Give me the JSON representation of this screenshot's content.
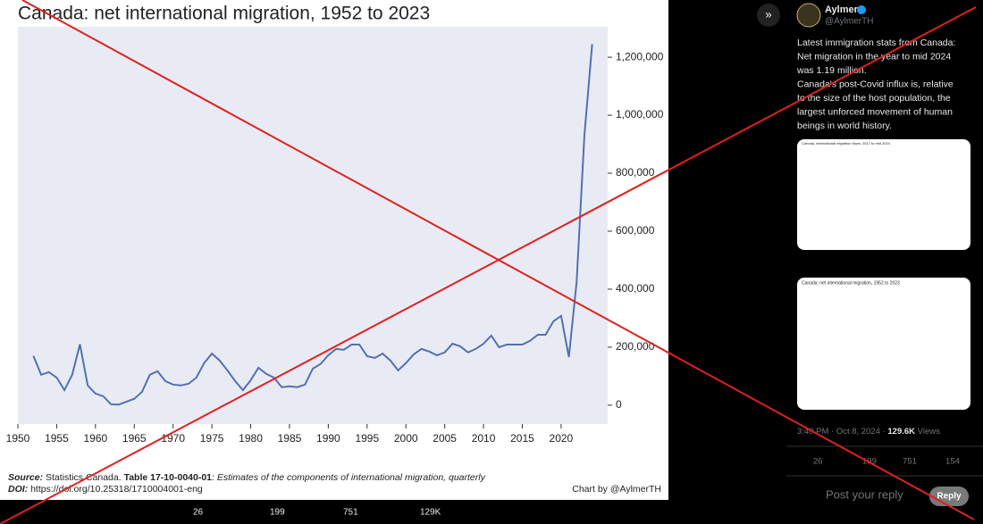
{
  "chart_data": {
    "type": "line",
    "title": "Canada: net international migration, 1952 to 2023",
    "source": [
      "Source:",
      " Statistics Canada. ",
      "Table 17-10-0040-01",
      ": ",
      "Estimates of the components of international migration, quarterly"
    ],
    "doi": [
      "DOI:",
      " https://doi.org/10.25318/1710004001-eng"
    ],
    "credit": "Chart by @AylmerTH",
    "x": [
      1952,
      1953,
      1954,
      1955,
      1956,
      1957,
      1958,
      1959,
      1960,
      1961,
      1962,
      1963,
      1964,
      1965,
      1966,
      1967,
      1968,
      1969,
      1970,
      1971,
      1972,
      1973,
      1974,
      1975,
      1976,
      1977,
      1978,
      1979,
      1980,
      1981,
      1982,
      1983,
      1984,
      1985,
      1986,
      1987,
      1988,
      1989,
      1990,
      1991,
      1992,
      1993,
      1994,
      1995,
      1996,
      1997,
      1998,
      1999,
      2000,
      2001,
      2002,
      2003,
      2004,
      2005,
      2006,
      2007,
      2008,
      2009,
      2010,
      2011,
      2012,
      2013,
      2014,
      2015,
      2016,
      2017,
      2018,
      2019,
      2020,
      2021,
      2022,
      2023,
      2024
    ],
    "series": [
      {
        "color": "#5470b0",
        "values": [
          170000,
          105000,
          114000,
          95000,
          52000,
          105000,
          210000,
          68000,
          40000,
          31000,
          3000,
          2000,
          12000,
          22000,
          46000,
          105000,
          117000,
          83000,
          71000,
          68000,
          74000,
          95000,
          145000,
          178000,
          154000,
          120000,
          83000,
          52000,
          86000,
          129000,
          108000,
          95000,
          62000,
          65000,
          62000,
          71000,
          126000,
          142000,
          172000,
          194000,
          191000,
          209000,
          209000,
          169000,
          163000,
          178000,
          154000,
          120000,
          145000,
          175000,
          194000,
          185000,
          172000,
          182000,
          212000,
          203000,
          182000,
          194000,
          212000,
          240000,
          200000,
          209000,
          209000,
          209000,
          222000,
          243000,
          243000,
          289000,
          308000,
          166000,
          425000,
          930000,
          1245000
        ]
      }
    ],
    "xlim": [
      1950,
      2026
    ],
    "xticks": [
      1950,
      1955,
      1960,
      1965,
      1970,
      1975,
      1980,
      1985,
      1990,
      1995,
      2000,
      2005,
      2010,
      2015,
      2020
    ],
    "ylim": [
      -65000,
      1305000
    ],
    "yticks": [
      0,
      {
        "value": 200000,
        "label": "200,000"
      },
      {
        "value": 400000,
        "label": "400,000"
      },
      {
        "value": 600000,
        "label": "600,000"
      },
      {
        "value": 800000,
        "label": "800,000"
      },
      {
        "value": 1000000,
        "label": "1,000,000"
      },
      {
        "value": 1200000,
        "label": "1,200,000"
      }
    ],
    "grid": false
  },
  "viewer_bar": {
    "replies": "26",
    "reposts": "199",
    "likes": "751",
    "views": "129K"
  },
  "tweet": {
    "name": "Aylmer",
    "handle": "@AylmerTH",
    "lines": [
      "Latest immigration stats from Canada:",
      "Net migration in the year to mid 2024",
      "was 1.19 million.",
      "Canada's post-Covid influx is, relative",
      "to the size of the host population, the",
      "largest unforced movement of human",
      "beings in world history."
    ],
    "image1_title": "Canada, international migration flows, 2017 to mid 2024",
    "image2_title": "Canada: net international migration, 1952 to 2023",
    "time": "3:40 PM · Oct 8, 2024 · ",
    "views": "129.6K",
    "views_label": " Views",
    "replies": "26",
    "reposts": "199",
    "likes": "751",
    "bookmarks": "154",
    "reply_placeholder": "Post your reply",
    "reply_button": "Reply"
  }
}
